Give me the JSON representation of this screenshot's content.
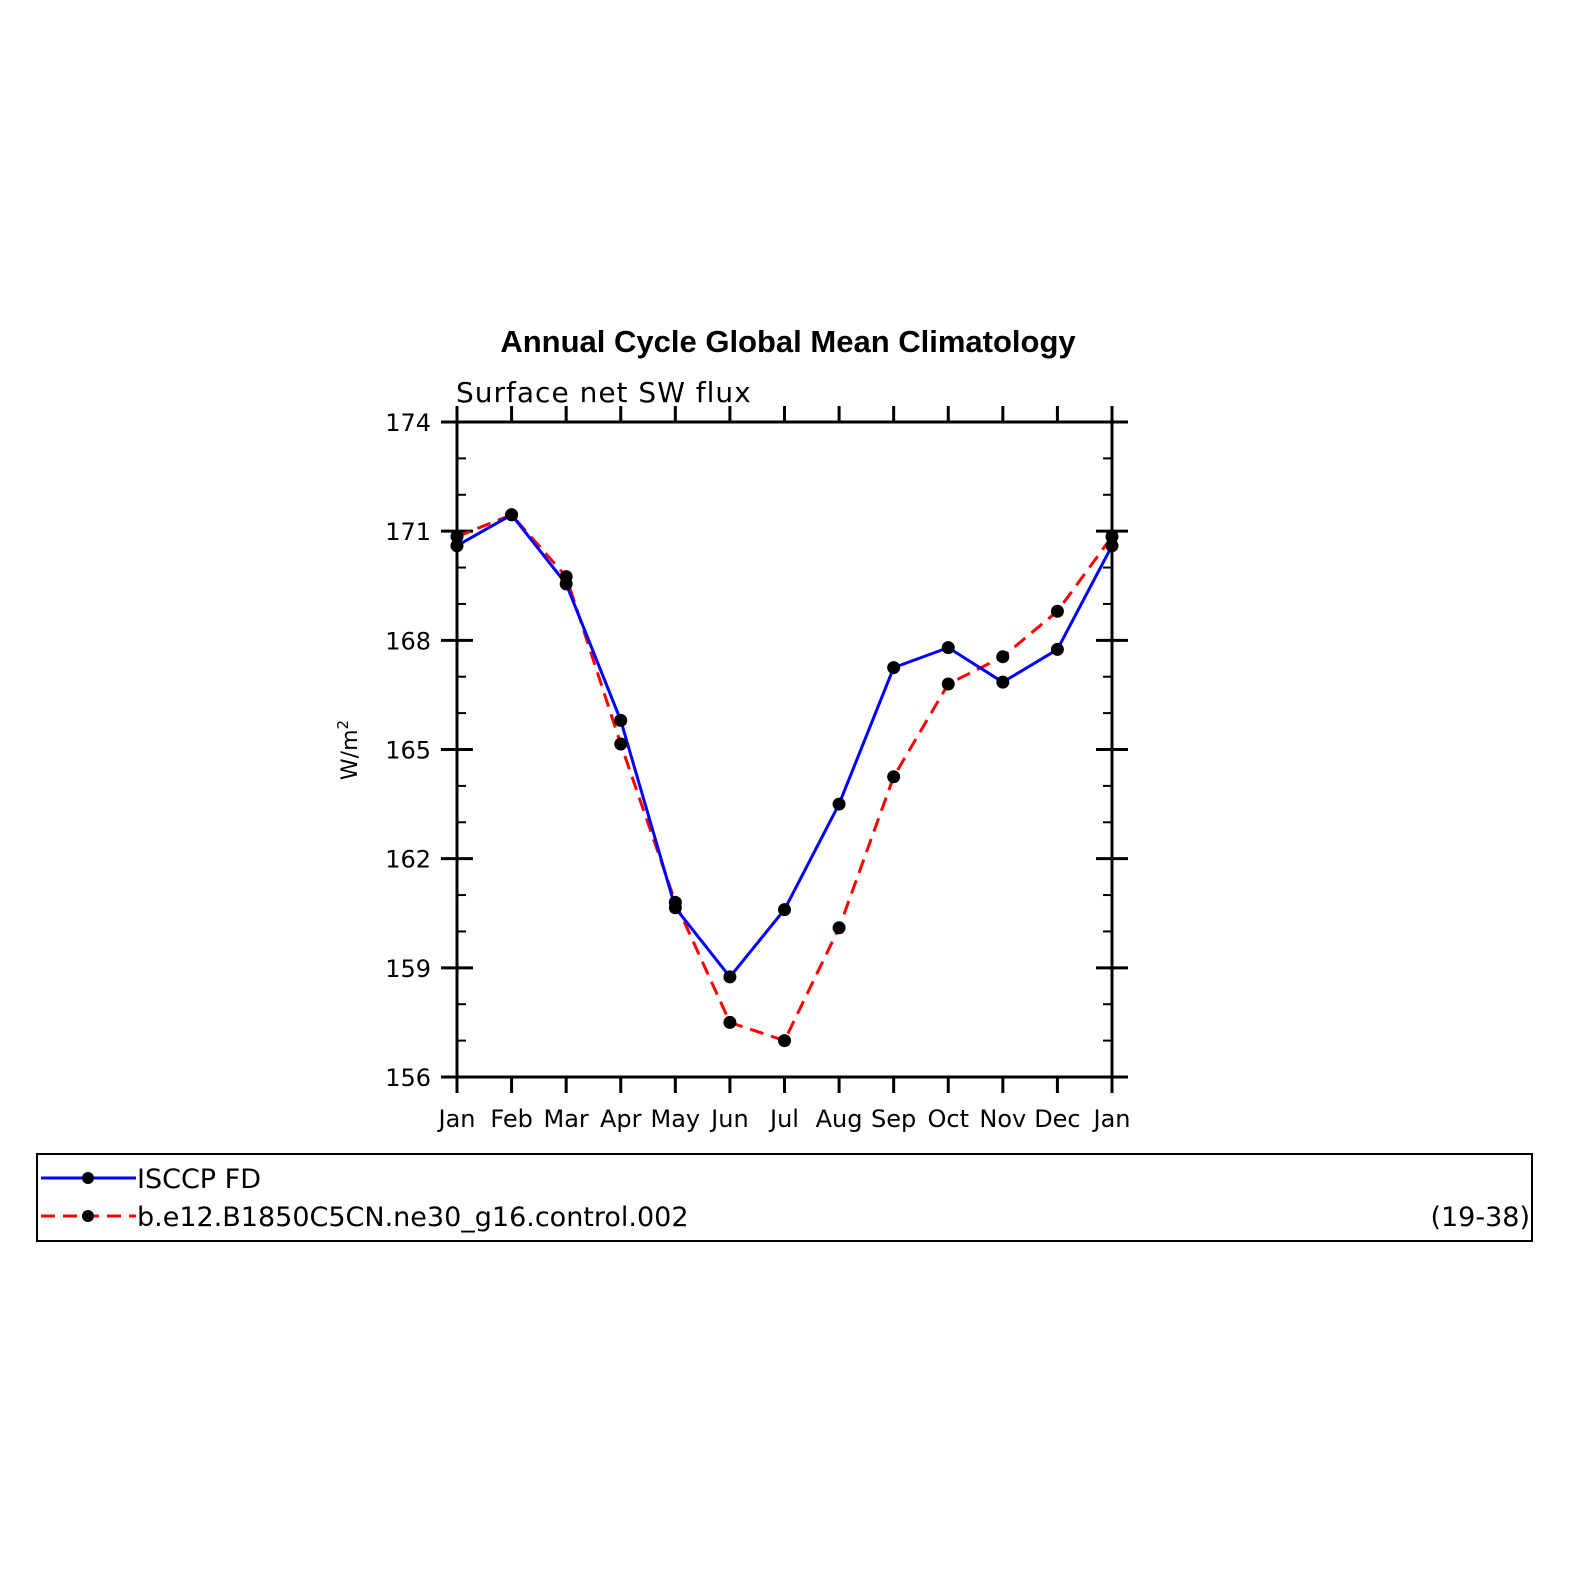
{
  "chart_data": {
    "type": "line",
    "title": "Annual Cycle Global Mean Climatology",
    "subtitle": "Surface net SW flux",
    "ylabel_base": "W/m",
    "ylabel_sup": "2",
    "xlabel": "",
    "categories": [
      "Jan",
      "Feb",
      "Mar",
      "Apr",
      "May",
      "Jun",
      "Jul",
      "Aug",
      "Sep",
      "Oct",
      "Nov",
      "Dec",
      "Jan"
    ],
    "yticks": [
      156,
      159,
      162,
      165,
      168,
      171,
      174
    ],
    "ylim": [
      156,
      174
    ],
    "series": [
      {
        "name": "ISCCP FD",
        "color": "#0000ff",
        "dash": "solid",
        "values": [
          170.6,
          171.45,
          169.55,
          165.8,
          160.65,
          158.75,
          160.6,
          163.5,
          167.25,
          167.8,
          166.85,
          167.75,
          170.6
        ]
      },
      {
        "name": "b.e12.B1850C5CN.ne30_g16.control.002",
        "color": "#ff0000",
        "dash": "dashed",
        "values": [
          170.85,
          171.45,
          169.75,
          165.15,
          160.8,
          157.5,
          157.0,
          160.1,
          164.25,
          166.8,
          167.55,
          168.8,
          170.85
        ]
      }
    ],
    "marker_color": "#000000",
    "legend_note": "(19-38)",
    "legend_placement": "bottom"
  }
}
